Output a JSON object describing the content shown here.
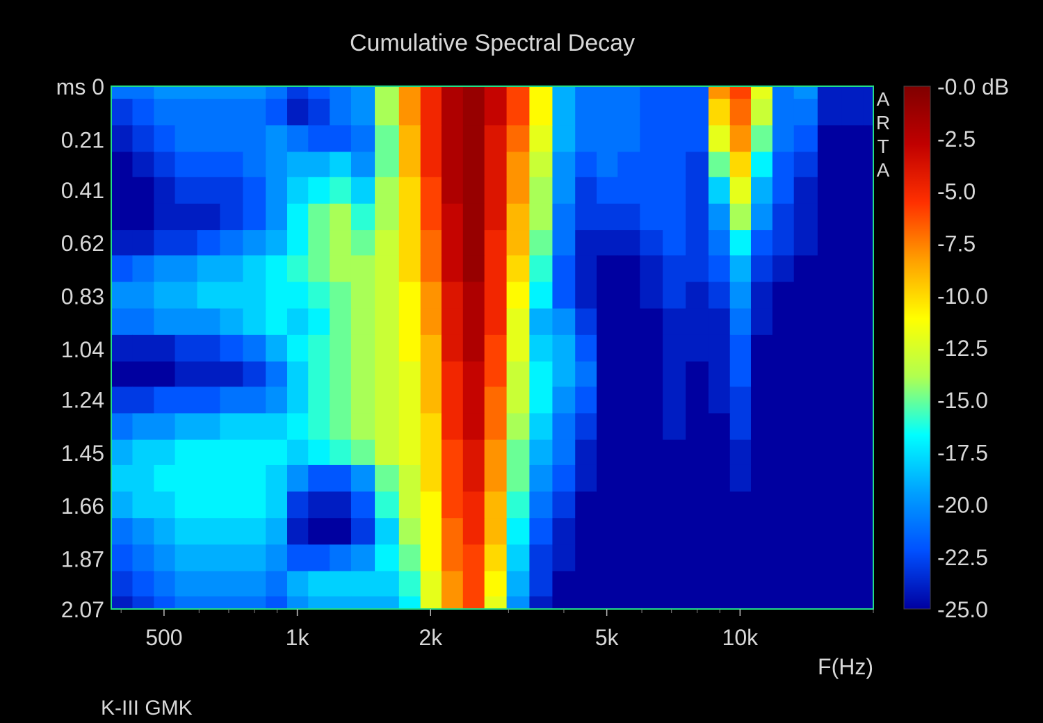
{
  "chart_data": {
    "type": "heatmap",
    "title": "Cumulative Spectral Decay",
    "xlabel": "F(Hz)",
    "ylabel": "ms",
    "watermark": "ARTA",
    "footer": "K-III GMK",
    "x_scale": "log",
    "xlim": [
      380,
      20000
    ],
    "x_ticks": [
      {
        "value": 500,
        "label": "500"
      },
      {
        "value": 1000,
        "label": "1k"
      },
      {
        "value": 2000,
        "label": "2k"
      },
      {
        "value": 5000,
        "label": "5k"
      },
      {
        "value": 10000,
        "label": "10k"
      }
    ],
    "ylim": [
      0,
      2.07
    ],
    "y_ticks": [
      {
        "value": 0,
        "label": "ms 0"
      },
      {
        "value": 0.21,
        "label": "0.21"
      },
      {
        "value": 0.41,
        "label": "0.41"
      },
      {
        "value": 0.62,
        "label": "0.62"
      },
      {
        "value": 0.83,
        "label": "0.83"
      },
      {
        "value": 1.04,
        "label": "1.04"
      },
      {
        "value": 1.24,
        "label": "1.24"
      },
      {
        "value": 1.45,
        "label": "1.45"
      },
      {
        "value": 1.66,
        "label": "1.66"
      },
      {
        "value": 1.87,
        "label": "1.87"
      },
      {
        "value": 2.07,
        "label": "2.07"
      }
    ],
    "colorbar": {
      "range": [
        -25.0,
        0.0
      ],
      "unit": "dB",
      "ticks": [
        {
          "value": 0.0,
          "label": "-0.0 dB"
        },
        {
          "value": -2.5,
          "label": "-2.5"
        },
        {
          "value": -5.0,
          "label": "-5.0"
        },
        {
          "value": -7.5,
          "label": "-7.5"
        },
        {
          "value": -10.0,
          "label": "-10.0"
        },
        {
          "value": -12.5,
          "label": "-12.5"
        },
        {
          "value": -15.0,
          "label": "-15.0"
        },
        {
          "value": -17.5,
          "label": "-17.5"
        },
        {
          "value": -20.0,
          "label": "-20.0"
        },
        {
          "value": -22.5,
          "label": "-22.5"
        },
        {
          "value": -25.0,
          "label": "-25.0"
        }
      ],
      "colors": [
        "#0000a0",
        "#0050ff",
        "#00a0ff",
        "#00ffff",
        "#b0ff50",
        "#ffff00",
        "#ffa000",
        "#ff3000",
        "#c00000",
        "#800000"
      ]
    },
    "time_ms": [
      0,
      0.1,
      0.21,
      0.31,
      0.41,
      0.52,
      0.62,
      0.72,
      0.83,
      0.93,
      1.04,
      1.14,
      1.24,
      1.35,
      1.45,
      1.55,
      1.66,
      1.76,
      1.87,
      1.97,
      2.07
    ],
    "frequency_hz": [
      400,
      450,
      500,
      560,
      630,
      710,
      800,
      900,
      1000,
      1120,
      1250,
      1400,
      1600,
      1800,
      2000,
      2240,
      2500,
      2800,
      3150,
      3550,
      4000,
      4500,
      5000,
      5600,
      6300,
      7100,
      8000,
      9000,
      10000,
      11200,
      12500,
      14000,
      16000,
      18000,
      20000
    ],
    "decay_db": [
      [
        -21,
        -21,
        -20,
        -20,
        -20,
        -20,
        -20,
        -21,
        -23,
        -22,
        -21,
        -20,
        -14,
        -8,
        -5,
        -2,
        -1,
        -3,
        -6,
        -11,
        -19,
        -21,
        -21,
        -21,
        -22,
        -22,
        -22,
        -8,
        -6,
        -12,
        -21,
        -20,
        -24,
        -24,
        -24
      ],
      [
        -23,
        -22,
        -21,
        -21,
        -21,
        -21,
        -21,
        -22,
        -24,
        -23,
        -21,
        -20,
        -14,
        -8,
        -5,
        -2,
        -1,
        -3,
        -6,
        -11,
        -19,
        -21,
        -21,
        -21,
        -22,
        -22,
        -22,
        -10,
        -7,
        -13,
        -21,
        -21,
        -24,
        -24,
        -24
      ],
      [
        -24,
        -23,
        -22,
        -21,
        -21,
        -21,
        -21,
        -20,
        -21,
        -22,
        -22,
        -21,
        -15,
        -9,
        -5,
        -2,
        -1,
        -4,
        -7,
        -12,
        -19,
        -21,
        -21,
        -21,
        -22,
        -22,
        -22,
        -12,
        -8,
        -15,
        -21,
        -22,
        -25,
        -25,
        -25
      ],
      [
        -25,
        -24,
        -23,
        -22,
        -22,
        -22,
        -21,
        -20,
        -19,
        -19,
        -18,
        -20,
        -15,
        -9,
        -5,
        -2,
        -1,
        -4,
        -8,
        -13,
        -20,
        -22,
        -21,
        -22,
        -22,
        -22,
        -23,
        -15,
        -10,
        -17,
        -22,
        -23,
        -25,
        -25,
        -25
      ],
      [
        -25,
        -25,
        -24,
        -23,
        -23,
        -23,
        -22,
        -20,
        -18,
        -17,
        -16,
        -18,
        -14,
        -10,
        -6,
        -2,
        -1,
        -4,
        -8,
        -14,
        -20,
        -23,
        -22,
        -22,
        -22,
        -22,
        -23,
        -18,
        -12,
        -19,
        -22,
        -24,
        -25,
        -25,
        -25
      ],
      [
        -25,
        -25,
        -24,
        -24,
        -24,
        -23,
        -22,
        -20,
        -17,
        -15,
        -14,
        -16,
        -14,
        -10,
        -6,
        -3,
        -1,
        -4,
        -9,
        -14,
        -21,
        -23,
        -23,
        -23,
        -22,
        -22,
        -23,
        -20,
        -14,
        -20,
        -23,
        -24,
        -25,
        -25,
        -25
      ],
      [
        -24,
        -24,
        -23,
        -23,
        -22,
        -21,
        -20,
        -19,
        -17,
        -15,
        -14,
        -15,
        -13,
        -10,
        -7,
        -3,
        -1,
        -5,
        -9,
        -15,
        -21,
        -24,
        -24,
        -24,
        -23,
        -22,
        -23,
        -21,
        -17,
        -22,
        -23,
        -24,
        -25,
        -25,
        -25
      ],
      [
        -22,
        -21,
        -20,
        -20,
        -19,
        -19,
        -18,
        -17,
        -16,
        -15,
        -14,
        -14,
        -13,
        -10,
        -7,
        -3,
        -1,
        -5,
        -10,
        -16,
        -22,
        -24,
        -25,
        -25,
        -24,
        -23,
        -23,
        -22,
        -19,
        -23,
        -24,
        -25,
        -25,
        -25,
        -25
      ],
      [
        -20,
        -20,
        -19,
        -19,
        -18,
        -18,
        -18,
        -17,
        -17,
        -16,
        -15,
        -14,
        -13,
        -11,
        -8,
        -4,
        -2,
        -5,
        -11,
        -17,
        -22,
        -24,
        -25,
        -25,
        -24,
        -23,
        -24,
        -23,
        -20,
        -24,
        -25,
        -25,
        -25,
        -25,
        -25
      ],
      [
        -21,
        -21,
        -20,
        -20,
        -20,
        -19,
        -18,
        -17,
        -18,
        -17,
        -15,
        -14,
        -13,
        -11,
        -8,
        -4,
        -2,
        -5,
        -12,
        -19,
        -20,
        -23,
        -25,
        -25,
        -25,
        -24,
        -24,
        -24,
        -21,
        -24,
        -25,
        -25,
        -25,
        -25,
        -25
      ],
      [
        -24,
        -24,
        -24,
        -23,
        -23,
        -22,
        -21,
        -19,
        -17,
        -16,
        -15,
        -14,
        -13,
        -11,
        -9,
        -4,
        -2,
        -6,
        -12,
        -18,
        -19,
        -22,
        -25,
        -25,
        -25,
        -24,
        -24,
        -24,
        -22,
        -25,
        -25,
        -25,
        -25,
        -25,
        -25
      ],
      [
        -25,
        -25,
        -25,
        -24,
        -24,
        -24,
        -23,
        -21,
        -18,
        -16,
        -15,
        -14,
        -13,
        -12,
        -9,
        -5,
        -3,
        -6,
        -13,
        -17,
        -19,
        -21,
        -25,
        -25,
        -25,
        -24,
        -25,
        -24,
        -22,
        -25,
        -25,
        -25,
        -25,
        -25,
        -25
      ],
      [
        -23,
        -23,
        -22,
        -22,
        -22,
        -21,
        -21,
        -20,
        -18,
        -16,
        -15,
        -14,
        -13,
        -12,
        -9,
        -5,
        -3,
        -7,
        -13,
        -17,
        -20,
        -22,
        -25,
        -25,
        -25,
        -24,
        -25,
        -24,
        -23,
        -25,
        -25,
        -25,
        -25,
        -25,
        -25
      ],
      [
        -21,
        -20,
        -20,
        -19,
        -19,
        -18,
        -18,
        -18,
        -17,
        -16,
        -15,
        -14,
        -13,
        -12,
        -10,
        -5,
        -3,
        -7,
        -14,
        -18,
        -21,
        -23,
        -25,
        -25,
        -25,
        -24,
        -25,
        -25,
        -23,
        -25,
        -25,
        -25,
        -25,
        -25,
        -25
      ],
      [
        -19,
        -18,
        -18,
        -17,
        -17,
        -17,
        -17,
        -17,
        -18,
        -17,
        -16,
        -15,
        -13,
        -12,
        -10,
        -6,
        -4,
        -8,
        -15,
        -19,
        -21,
        -24,
        -25,
        -25,
        -25,
        -25,
        -25,
        -25,
        -24,
        -25,
        -25,
        -25,
        -25,
        -25,
        -25
      ],
      [
        -18,
        -18,
        -17,
        -17,
        -17,
        -17,
        -17,
        -18,
        -20,
        -22,
        -22,
        -20,
        -15,
        -13,
        -10,
        -6,
        -4,
        -8,
        -15,
        -20,
        -22,
        -24,
        -25,
        -25,
        -25,
        -25,
        -25,
        -25,
        -24,
        -25,
        -25,
        -25,
        -25,
        -25,
        -25
      ],
      [
        -19,
        -18,
        -18,
        -17,
        -17,
        -17,
        -17,
        -18,
        -23,
        -24,
        -24,
        -22,
        -16,
        -13,
        -11,
        -6,
        -5,
        -9,
        -16,
        -21,
        -23,
        -25,
        -25,
        -25,
        -25,
        -25,
        -25,
        -25,
        -25,
        -25,
        -25,
        -25,
        -25,
        -25,
        -25
      ],
      [
        -21,
        -20,
        -19,
        -18,
        -18,
        -18,
        -18,
        -19,
        -24,
        -25,
        -25,
        -23,
        -18,
        -14,
        -11,
        -7,
        -5,
        -9,
        -17,
        -22,
        -24,
        -25,
        -25,
        -25,
        -25,
        -25,
        -25,
        -25,
        -25,
        -25,
        -25,
        -25,
        -25,
        -25,
        -25
      ],
      [
        -22,
        -21,
        -20,
        -19,
        -19,
        -19,
        -19,
        -20,
        -22,
        -22,
        -21,
        -20,
        -17,
        -15,
        -11,
        -7,
        -6,
        -10,
        -18,
        -23,
        -24,
        -25,
        -25,
        -25,
        -25,
        -25,
        -25,
        -25,
        -25,
        -25,
        -25,
        -25,
        -25,
        -25,
        -25
      ],
      [
        -23,
        -22,
        -21,
        -20,
        -20,
        -20,
        -20,
        -21,
        -19,
        -18,
        -18,
        -18,
        -18,
        -16,
        -12,
        -8,
        -6,
        -11,
        -19,
        -23,
        -25,
        -25,
        -25,
        -25,
        -25,
        -25,
        -25,
        -25,
        -25,
        -25,
        -25,
        -25,
        -25,
        -25,
        -25
      ],
      [
        -24,
        -23,
        -22,
        -21,
        -21,
        -21,
        -21,
        -22,
        -20,
        -19,
        -19,
        -19,
        -19,
        -17,
        -12,
        -8,
        -6,
        -12,
        -20,
        -24,
        -25,
        -25,
        -25,
        -25,
        -25,
        -25,
        -25,
        -25,
        -25,
        -25,
        -25,
        -25,
        -25,
        -25,
        -25
      ]
    ]
  }
}
